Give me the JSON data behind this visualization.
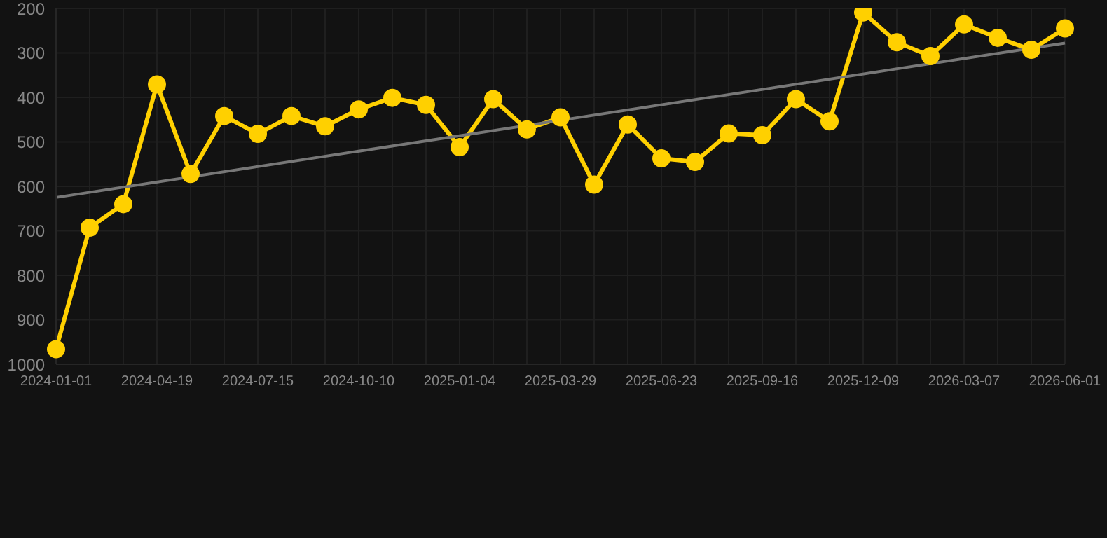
{
  "chart_data": {
    "type": "line",
    "categories": [
      "2024-01-01",
      null,
      null,
      "2024-04-19",
      null,
      null,
      "2024-07-15",
      null,
      null,
      "2024-10-10",
      null,
      null,
      "2025-01-04",
      null,
      null,
      "2025-03-29",
      null,
      null,
      "2025-06-23",
      null,
      null,
      "2025-09-16",
      null,
      null,
      "2025-12-09",
      null,
      null,
      "2026-03-07",
      null,
      null,
      "2026-06-01"
    ],
    "series": [
      {
        "color": "#ffd000",
        "marker": "circle",
        "values": [
          966,
          693,
          640,
          371,
          572,
          442,
          482,
          442,
          465,
          427,
          401,
          417,
          512,
          404,
          472,
          445,
          596,
          461,
          537,
          545,
          481,
          485,
          404,
          454,
          209,
          276,
          307,
          236,
          266,
          293,
          245
        ]
      },
      {
        "type": "line",
        "color": "#777777",
        "marker": "none",
        "values": [
          625,
          null,
          null,
          null,
          null,
          null,
          null,
          null,
          null,
          null,
          null,
          null,
          null,
          null,
          null,
          null,
          null,
          null,
          null,
          null,
          null,
          null,
          null,
          null,
          null,
          null,
          null,
          null,
          null,
          null,
          278
        ]
      }
    ],
    "ylim": [
      1000,
      200
    ],
    "yticks": [
      200,
      300,
      400,
      500,
      600,
      700,
      800,
      900,
      1000
    ],
    "grid": true,
    "legend": false
  }
}
